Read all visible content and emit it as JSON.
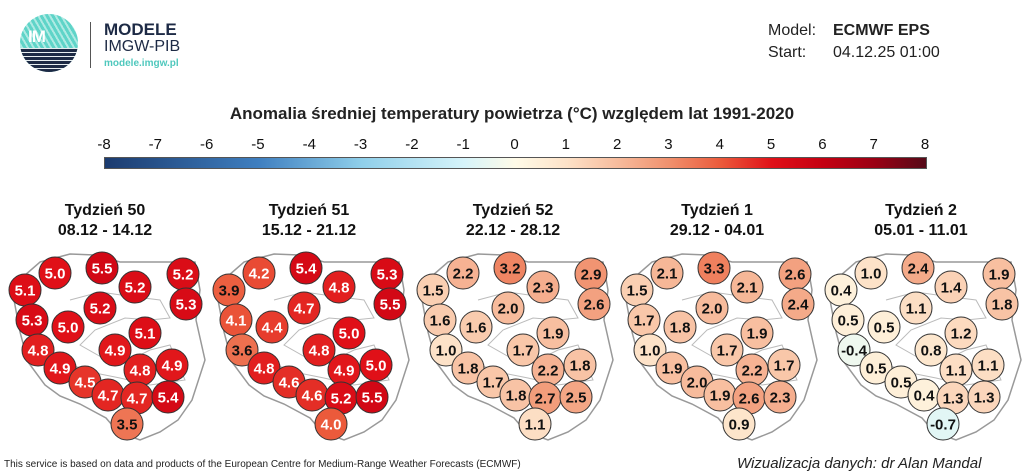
{
  "logo": {
    "lettering": "IMGW",
    "name": "MODELE",
    "org": "IMGW-PIB",
    "url": "modele.imgw.pl"
  },
  "model": {
    "model_label": "Model:",
    "model_value": "ECMWF EPS",
    "start_label": "Start:",
    "start_value": "04.12.25 01:00"
  },
  "chart_data": {
    "type": "heatmap",
    "title": "Anomalia średniej temperatury powietrza (°C) względem lat 1991-2020",
    "colorbar": {
      "ticks": [
        "-8",
        "-7",
        "-6",
        "-5",
        "-4",
        "-3",
        "-2",
        "-1",
        "0",
        "1",
        "2",
        "3",
        "4",
        "5",
        "6",
        "7",
        "8"
      ],
      "range": [
        -8,
        8
      ],
      "colors": {
        "-8": "#1b3b6f",
        "-5": "#3f7fc0",
        "-3": "#8fcfea",
        "-1": "#d6f4fa",
        "0": "#fffbe8",
        "1": "#fde2c8",
        "2": "#f7bb9c",
        "3": "#f0906d",
        "4": "#eb5a3b",
        "5": "#e01018",
        "6": "#c40012",
        "7": "#9a0014",
        "8": "#560a18"
      }
    },
    "panels": [
      {
        "week": "Tydzień 50",
        "dates": "08.12 - 14.12",
        "values": [
          5.0,
          5.5,
          5.2,
          5.1,
          5.2,
          5.3,
          5.3,
          5.2,
          5.0,
          5.1,
          4.8,
          4.9,
          4.9,
          4.8,
          4.9,
          4.5,
          4.7,
          4.7,
          5.4,
          3.5
        ]
      },
      {
        "week": "Tydzień 51",
        "dates": "15.12 - 21.12",
        "values": [
          4.2,
          5.4,
          5.3,
          3.9,
          4.8,
          5.5,
          4.1,
          4.7,
          4.4,
          5.0,
          3.6,
          4.8,
          4.8,
          4.9,
          5.0,
          4.6,
          4.6,
          5.2,
          5.5,
          4.0
        ]
      },
      {
        "week": "Tydzień 52",
        "dates": "22.12 - 28.12",
        "values": [
          2.2,
          3.2,
          2.9,
          1.5,
          2.3,
          2.6,
          1.6,
          2.0,
          1.6,
          1.9,
          1.0,
          1.7,
          1.8,
          2.2,
          1.8,
          1.7,
          1.8,
          2.7,
          2.5,
          1.1
        ]
      },
      {
        "week": "Tydzień 1",
        "dates": "29.12 - 04.01",
        "values": [
          2.1,
          3.3,
          2.6,
          1.5,
          2.1,
          2.4,
          1.7,
          2.0,
          1.8,
          1.9,
          1.0,
          1.7,
          1.9,
          2.2,
          1.7,
          2.0,
          1.9,
          2.6,
          2.3,
          0.9
        ]
      },
      {
        "week": "Tydzień 2",
        "dates": "05.01 - 11.01",
        "values": [
          1.0,
          2.4,
          1.9,
          0.4,
          1.4,
          1.8,
          0.5,
          1.1,
          0.5,
          1.2,
          -0.4,
          0.8,
          0.5,
          1.1,
          1.1,
          0.5,
          0.4,
          1.3,
          1.3,
          -0.7
        ]
      }
    ]
  },
  "footer": {
    "source": "This service is based on data and products of the European Centre for Medium-Range Weather Forecasts (ECMWF)",
    "credit": "Wizualizacja danych: dr Alan Mandal"
  }
}
